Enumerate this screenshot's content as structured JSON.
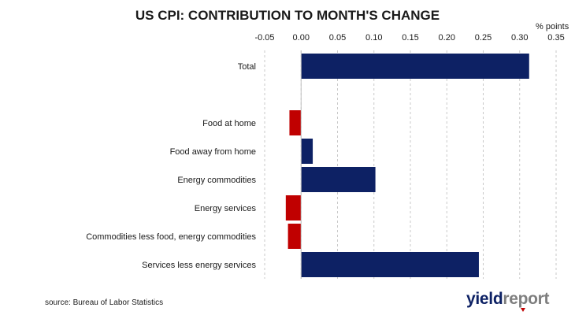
{
  "chart_data": {
    "type": "bar",
    "orientation": "horizontal",
    "title": "US CPI: CONTRIBUTION TO MONTH'S CHANGE",
    "unit_label": "% points",
    "xlim": [
      -0.05,
      0.35
    ],
    "x_ticks": [
      "-0.05",
      "0.00",
      "0.05",
      "0.10",
      "0.15",
      "0.20",
      "0.25",
      "0.30",
      "0.35"
    ],
    "grid": "vertical dashed",
    "categories": [
      "Total",
      "Food at home",
      "Food away from home",
      "Energy commodities",
      "Energy services",
      "Commodities less food, energy commodities",
      "Services less energy services"
    ],
    "values": [
      0.313,
      -0.016,
      0.016,
      0.102,
      -0.021,
      -0.018,
      0.244
    ],
    "colors": {
      "positive": "#0d2164",
      "negative": "#c00000"
    }
  },
  "footer": {
    "source": "source: Bureau of Labor Statistics",
    "brand_left": "yield",
    "brand_right": "report"
  }
}
